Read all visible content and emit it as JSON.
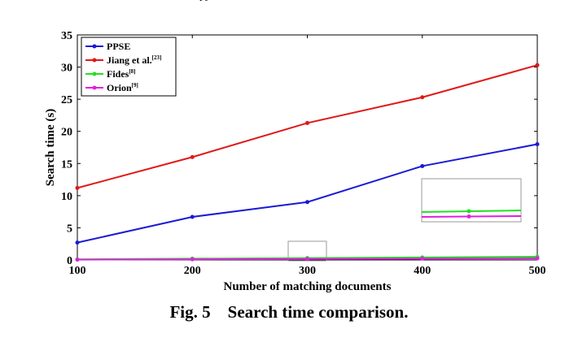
{
  "chart_data": {
    "type": "line",
    "x": [
      100,
      200,
      300,
      400,
      500
    ],
    "xticks": [
      "100",
      "200",
      "300",
      "400",
      "500"
    ],
    "yticks": [
      "0",
      "5",
      "10",
      "15",
      "20",
      "25",
      "30",
      "35"
    ],
    "xlim": [
      100,
      500
    ],
    "ylim": [
      0,
      35
    ],
    "xlabel": "Number of matching documents",
    "ylabel": "Search time (s)",
    "grid": false,
    "legend_position": "top-left",
    "series": [
      {
        "name": "PPSE",
        "ref": "",
        "color": "#1a1ad6",
        "values": [
          2.7,
          6.7,
          9.0,
          14.6,
          18.0
        ]
      },
      {
        "name": "Jiang et al.",
        "ref": "[23]",
        "color": "#e01818",
        "values": [
          11.2,
          16.0,
          21.3,
          25.3,
          30.3
        ]
      },
      {
        "name": "Fides",
        "ref": "[8]",
        "color": "#22e022",
        "values": [
          0.1,
          0.2,
          0.3,
          0.4,
          0.5
        ]
      },
      {
        "name": "Orion",
        "ref": "[9]",
        "color": "#e020e0",
        "values": [
          0.05,
          0.1,
          0.15,
          0.2,
          0.25
        ]
      }
    ]
  },
  "caption": {
    "label": "Fig. 5",
    "text": "Search time comparison."
  },
  "top_fragment": "py"
}
